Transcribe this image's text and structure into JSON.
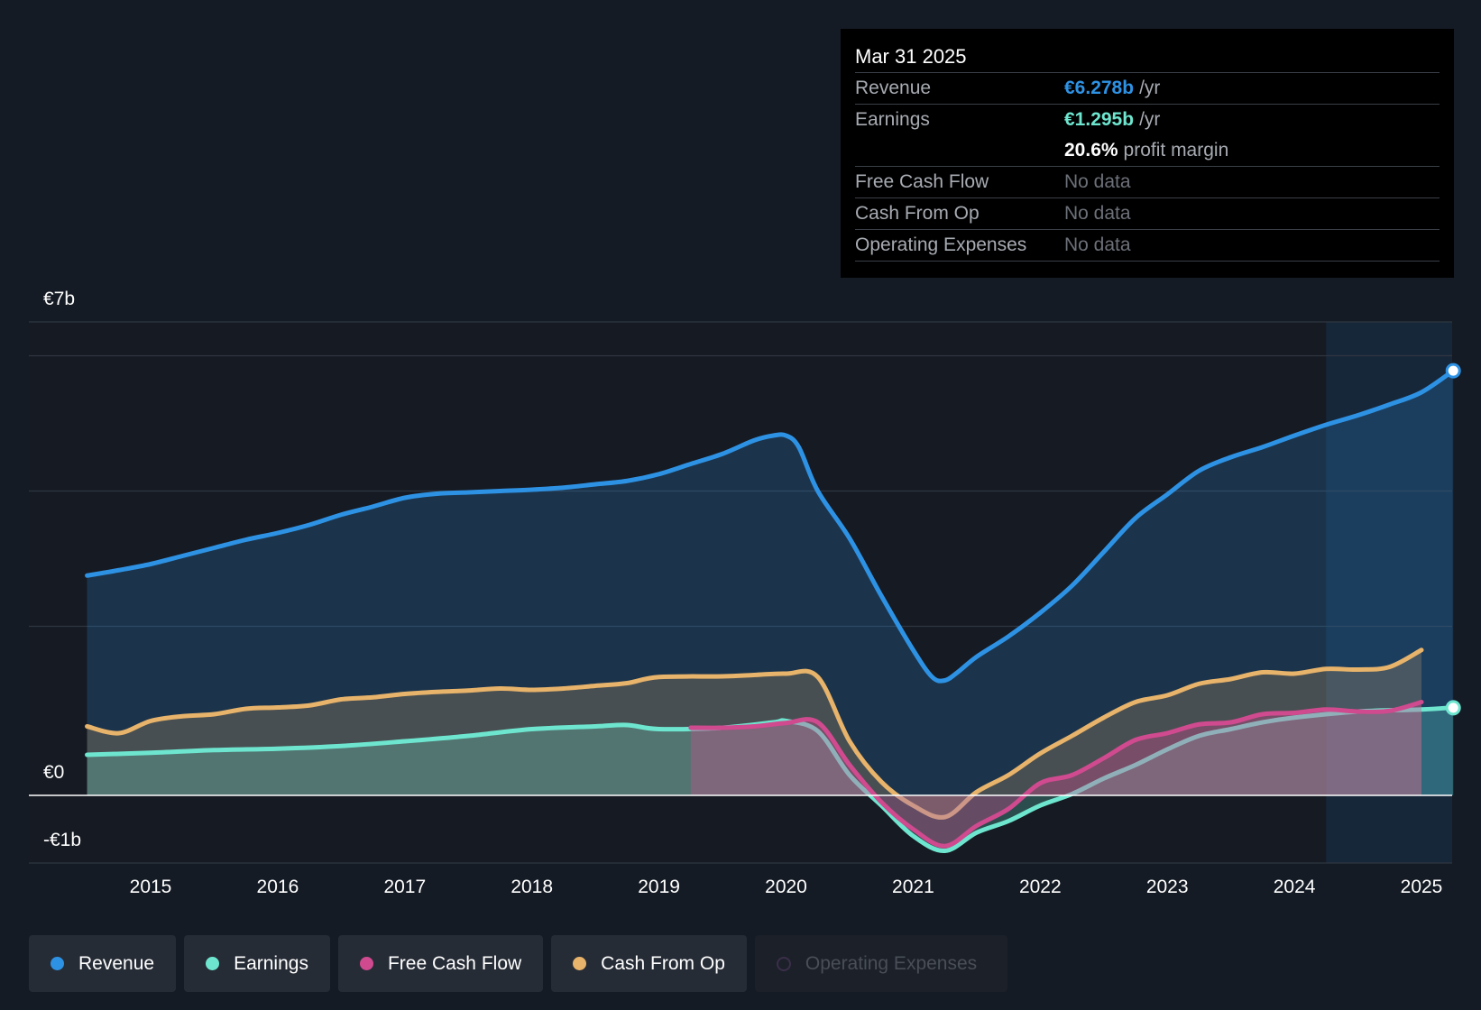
{
  "tooltip": {
    "date": "Mar 31 2025",
    "revenue_label": "Revenue",
    "revenue_value": "€6.278b",
    "earnings_label": "Earnings",
    "earnings_value": "€1.295b",
    "unit": "/yr",
    "margin_value": "20.6%",
    "margin_label": "profit margin",
    "fcf_label": "Free Cash Flow",
    "cfo_label": "Cash From Op",
    "opex_label": "Operating Expenses",
    "no_data": "No data"
  },
  "colors": {
    "revenue": "#2e92e4",
    "earnings": "#6ee6cf",
    "fcf": "#d04a8f",
    "cfo": "#e8b36a",
    "opex": "#3b2f4a",
    "background": "#151b24",
    "plot_past": "#161a22",
    "grid": "#2f3640"
  },
  "legend": [
    {
      "label": "Revenue",
      "color": "#2e92e4",
      "active": true
    },
    {
      "label": "Earnings",
      "color": "#6ee6cf",
      "active": true
    },
    {
      "label": "Free Cash Flow",
      "color": "#d04a8f",
      "active": true
    },
    {
      "label": "Cash From Op",
      "color": "#e8b36a",
      "active": true
    },
    {
      "label": "Operating Expenses",
      "color": "#3b2f4a",
      "active": false
    }
  ],
  "chart_data": {
    "type": "area",
    "title": "",
    "xlabel": "",
    "ylabel": "",
    "y_tick_labels": {
      "top": "€7b",
      "zero": "€0",
      "bottom": "-€1b"
    },
    "ylim": [
      -1,
      7
    ],
    "xlim": [
      2014.0,
      2025.25
    ],
    "x_ticks": [
      2015,
      2016,
      2017,
      2018,
      2019,
      2020,
      2021,
      2022,
      2023,
      2024,
      2025
    ],
    "x_tick_labels": [
      "2015",
      "2016",
      "2017",
      "2018",
      "2019",
      "2020",
      "2021",
      "2022",
      "2023",
      "2024",
      "2025"
    ],
    "series": [
      {
        "name": "Revenue",
        "x": [
          2014.5,
          2014.75,
          2015.0,
          2015.25,
          2015.5,
          2015.75,
          2016.0,
          2016.25,
          2016.5,
          2016.75,
          2017.0,
          2017.25,
          2017.5,
          2017.75,
          2018.0,
          2018.25,
          2018.5,
          2018.75,
          2019.0,
          2019.25,
          2019.5,
          2019.75,
          2019.9,
          2020.0,
          2020.1,
          2020.25,
          2020.5,
          2020.75,
          2021.0,
          2021.15,
          2021.25,
          2021.35,
          2021.5,
          2021.75,
          2022.0,
          2022.25,
          2022.5,
          2022.75,
          2023.0,
          2023.25,
          2023.5,
          2023.75,
          2024.0,
          2024.25,
          2024.5,
          2024.75,
          2025.0,
          2025.25
        ],
        "values": [
          3.25,
          3.33,
          3.42,
          3.54,
          3.66,
          3.78,
          3.88,
          4.0,
          4.15,
          4.27,
          4.4,
          4.46,
          4.48,
          4.5,
          4.52,
          4.55,
          4.6,
          4.65,
          4.75,
          4.9,
          5.05,
          5.25,
          5.32,
          5.32,
          5.15,
          4.5,
          3.8,
          2.95,
          2.15,
          1.75,
          1.7,
          1.82,
          2.05,
          2.35,
          2.7,
          3.1,
          3.6,
          4.1,
          4.45,
          4.8,
          5.0,
          5.15,
          5.32,
          5.48,
          5.62,
          5.78,
          5.96,
          6.28
        ]
      },
      {
        "name": "Earnings",
        "x": [
          2014.5,
          2015.0,
          2015.5,
          2016.0,
          2016.5,
          2017.0,
          2017.5,
          2018.0,
          2018.5,
          2018.75,
          2019.0,
          2019.5,
          2019.9,
          2020.0,
          2020.25,
          2020.5,
          2020.75,
          2021.0,
          2021.25,
          2021.5,
          2021.75,
          2022.0,
          2022.25,
          2022.5,
          2022.75,
          2023.0,
          2023.25,
          2023.5,
          2023.75,
          2024.0,
          2024.5,
          2025.0,
          2025.25
        ],
        "values": [
          0.6,
          0.63,
          0.67,
          0.69,
          0.73,
          0.8,
          0.88,
          0.98,
          1.02,
          1.04,
          0.98,
          1.0,
          1.08,
          1.1,
          0.95,
          0.3,
          -0.15,
          -0.6,
          -0.82,
          -0.55,
          -0.38,
          -0.15,
          0.02,
          0.25,
          0.45,
          0.68,
          0.88,
          0.98,
          1.08,
          1.15,
          1.24,
          1.27,
          1.3
        ]
      },
      {
        "name": "Free Cash Flow",
        "x": [
          2019.25,
          2019.5,
          2019.75,
          2020.0,
          2020.25,
          2020.5,
          2020.75,
          2021.0,
          2021.25,
          2021.5,
          2021.75,
          2022.0,
          2022.25,
          2022.5,
          2022.75,
          2023.0,
          2023.25,
          2023.5,
          2023.75,
          2024.0,
          2024.25,
          2024.5,
          2024.75,
          2025.0
        ],
        "values": [
          1.0,
          1.0,
          1.02,
          1.07,
          1.08,
          0.45,
          -0.1,
          -0.5,
          -0.75,
          -0.45,
          -0.2,
          0.18,
          0.3,
          0.55,
          0.82,
          0.92,
          1.05,
          1.08,
          1.2,
          1.22,
          1.27,
          1.24,
          1.25,
          1.38
        ]
      },
      {
        "name": "Cash From Op",
        "x": [
          2014.5,
          2014.75,
          2015.0,
          2015.25,
          2015.5,
          2015.75,
          2016.0,
          2016.25,
          2016.5,
          2016.75,
          2017.0,
          2017.25,
          2017.5,
          2017.75,
          2018.0,
          2018.25,
          2018.5,
          2018.75,
          2019.0,
          2019.5,
          2019.75,
          2020.0,
          2020.25,
          2020.5,
          2020.75,
          2021.0,
          2021.25,
          2021.5,
          2021.75,
          2022.0,
          2022.25,
          2022.5,
          2022.75,
          2023.0,
          2023.25,
          2023.5,
          2023.75,
          2024.0,
          2024.25,
          2024.5,
          2024.75,
          2025.0
        ],
        "values": [
          1.02,
          0.92,
          1.1,
          1.17,
          1.2,
          1.28,
          1.3,
          1.33,
          1.42,
          1.45,
          1.5,
          1.53,
          1.55,
          1.58,
          1.56,
          1.58,
          1.62,
          1.66,
          1.75,
          1.76,
          1.78,
          1.8,
          1.75,
          0.8,
          0.2,
          -0.15,
          -0.32,
          0.05,
          0.3,
          0.62,
          0.88,
          1.15,
          1.38,
          1.48,
          1.65,
          1.72,
          1.82,
          1.8,
          1.87,
          1.86,
          1.9,
          2.15
        ]
      },
      {
        "name": "Operating Expenses",
        "x": [],
        "values": []
      }
    ],
    "forecast_region_start": 2024.25,
    "highlight_point": {
      "x": 2025.25,
      "revenue": 6.278,
      "earnings": 1.295
    }
  }
}
